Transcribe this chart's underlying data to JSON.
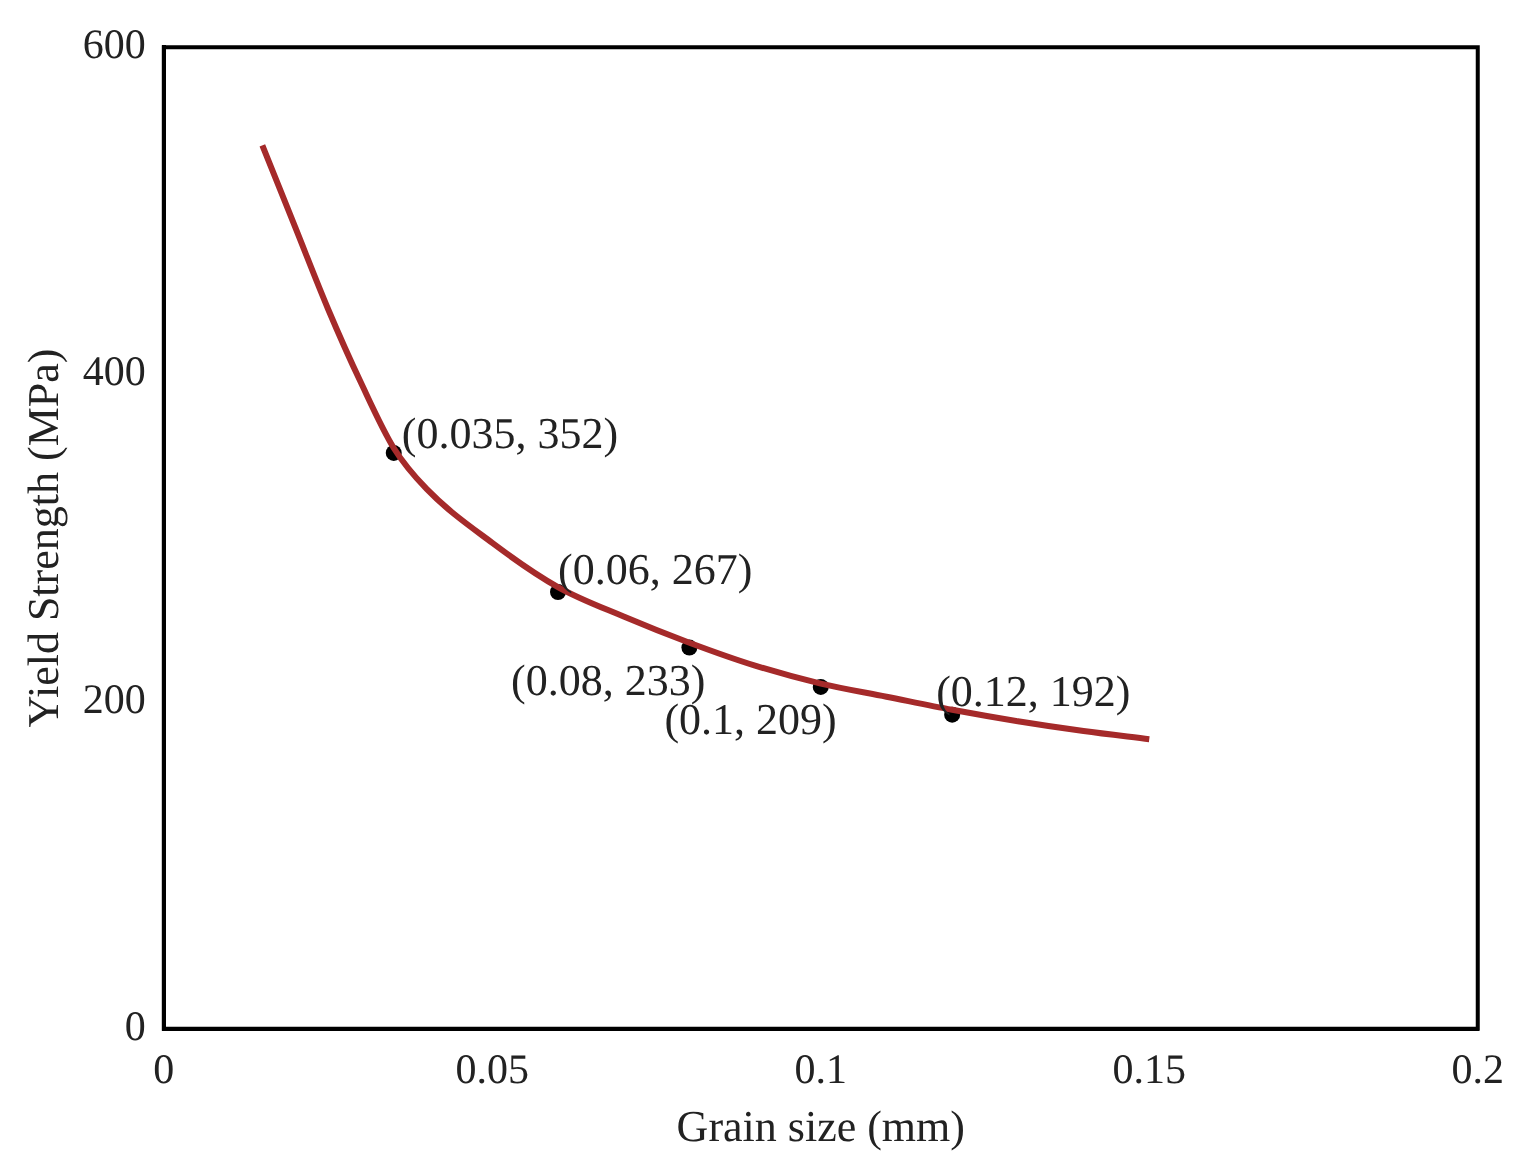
{
  "chart_data": {
    "type": "line",
    "xlabel": "Grain size (mm)",
    "ylabel": "Yield Strength (MPa)",
    "xlim": [
      0,
      0.2
    ],
    "xticks": [
      0,
      0.05,
      0.1,
      0.15,
      0.2
    ],
    "ylim": [
      0,
      600
    ],
    "yticks": [
      0,
      200,
      400,
      600
    ],
    "grid": false,
    "legend": false,
    "series": [
      {
        "color": "#a52a2a",
        "marker": "none",
        "x": [
          0.015,
          0.02,
          0.025,
          0.03,
          0.035,
          0.04,
          0.05,
          0.06,
          0.07,
          0.08,
          0.09,
          0.1,
          0.11,
          0.12,
          0.13,
          0.14,
          0.15
        ],
        "values": [
          540,
          490,
          440,
          395,
          355,
          330,
          297,
          270,
          252,
          236,
          222,
          211,
          203,
          195,
          188,
          182,
          177
        ]
      },
      {
        "type": "scatter",
        "color": "#000000",
        "marker": "circle",
        "x": [
          0.035,
          0.06,
          0.08,
          0.1,
          0.12
        ],
        "values": [
          352,
          267,
          233,
          209,
          192
        ]
      }
    ],
    "annotations": [
      {
        "text": "(0.035, 352)",
        "x": 0.035,
        "y": 352
      },
      {
        "text": "(0.06, 267)",
        "x": 0.06,
        "y": 267
      },
      {
        "text": "(0.08, 233)",
        "x": 0.08,
        "y": 233
      },
      {
        "text": "(0.1, 209)",
        "x": 0.1,
        "y": 209
      },
      {
        "text": "(0.12, 192)",
        "x": 0.12,
        "y": 192
      }
    ]
  }
}
